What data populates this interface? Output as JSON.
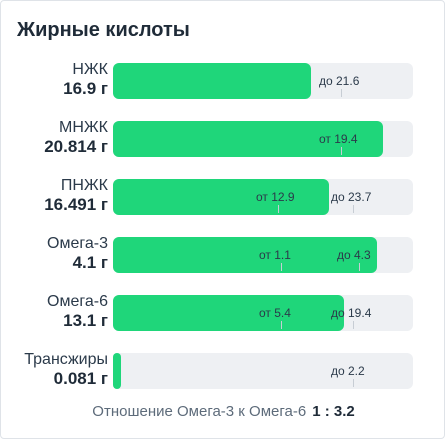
{
  "panel": {
    "title": "Жирные кислоты",
    "ratio_label": "Отношение Омега-3 к Омега-6",
    "ratio_value": "1 : 3.2"
  },
  "colors": {
    "fill": "#1fd67a",
    "track": "#eef0f3"
  },
  "rows": [
    {
      "name": "НЖК",
      "value": "16.9 г",
      "fill_fraction": 0.66,
      "markers": [
        {
          "text": "до 21.6",
          "pos": 0.76
        }
      ]
    },
    {
      "name": "МНЖК",
      "value": "20.814 г",
      "fill_fraction": 0.9,
      "markers": [
        {
          "text": "от 19.4",
          "pos": 0.76
        }
      ]
    },
    {
      "name": "ПНЖК",
      "value": "16.491 г",
      "fill_fraction": 0.72,
      "markers": [
        {
          "text": "от 12.9",
          "pos": 0.55
        },
        {
          "text": "до 23.7",
          "pos": 0.8
        }
      ]
    },
    {
      "name": "Омега-3",
      "value": "4.1 г",
      "fill_fraction": 0.88,
      "markers": [
        {
          "text": "от 1.1",
          "pos": 0.56
        },
        {
          "text": "до 4.3",
          "pos": 0.82
        }
      ]
    },
    {
      "name": "Омега-6",
      "value": "13.1 г",
      "fill_fraction": 0.77,
      "markers": [
        {
          "text": "от 5.4",
          "pos": 0.56
        },
        {
          "text": "до 19.4",
          "pos": 0.8
        }
      ]
    },
    {
      "name": "Трансжиры",
      "value": "0.081 г",
      "fill_fraction": 0.02,
      "markers": [
        {
          "text": "до 2.2",
          "pos": 0.8
        }
      ]
    }
  ]
}
